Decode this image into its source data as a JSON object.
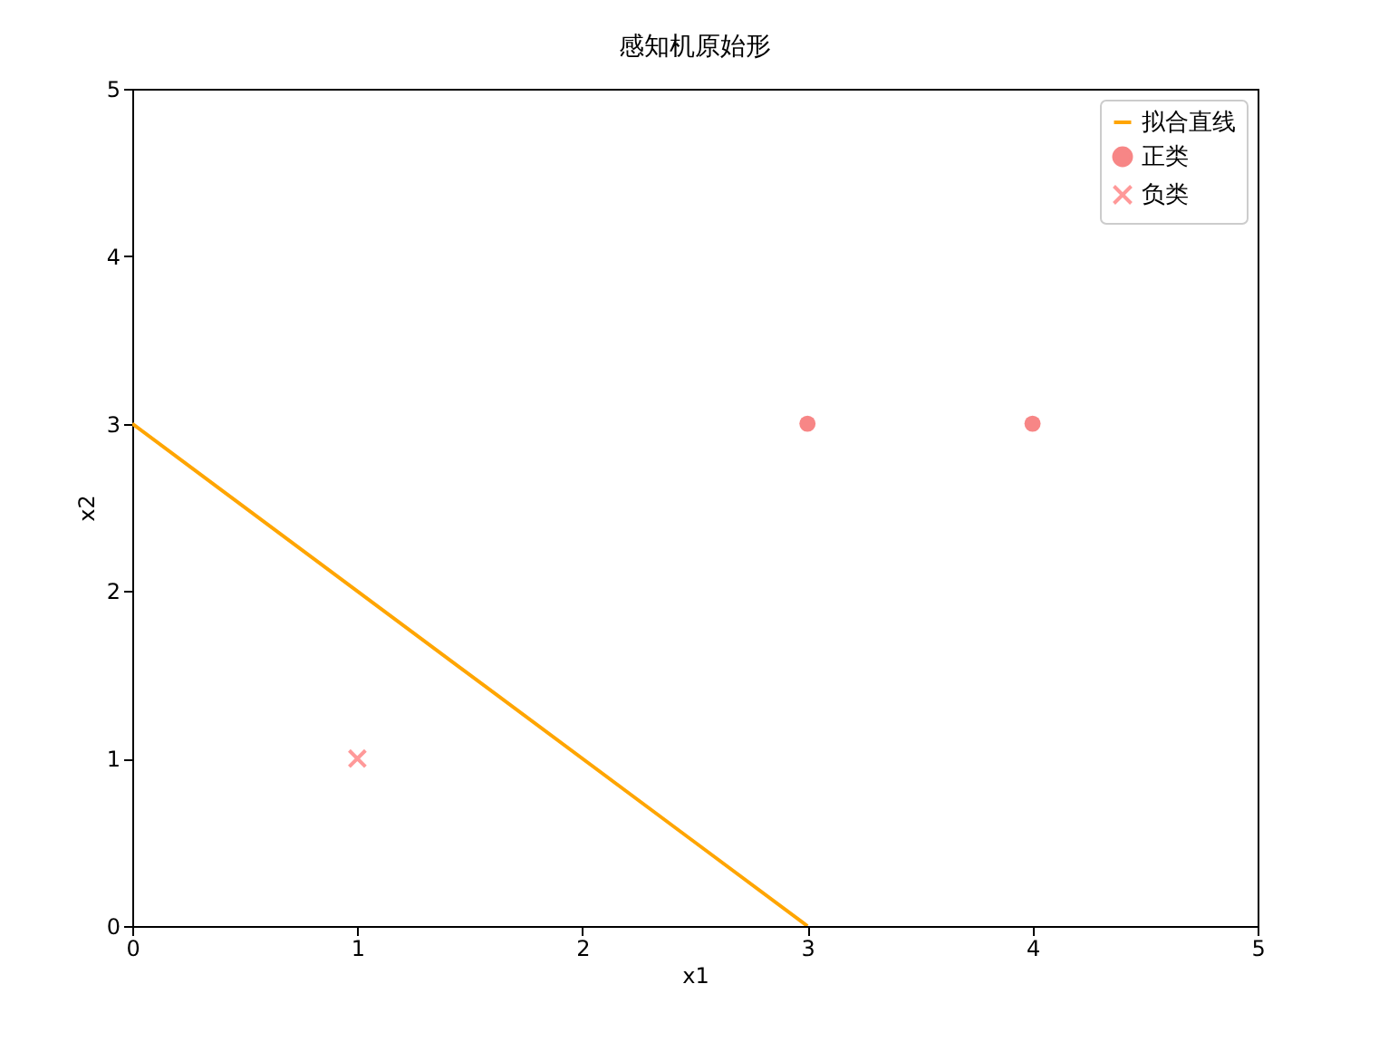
{
  "chart_data": {
    "type": "scatter",
    "title": "感知机原始形",
    "xlabel": "x1",
    "ylabel": "x2",
    "xlim": [
      0,
      5
    ],
    "ylim": [
      0,
      5
    ],
    "xticks": [
      0,
      1,
      2,
      3,
      4,
      5
    ],
    "yticks": [
      0,
      1,
      2,
      3,
      4,
      5
    ],
    "grid": false,
    "legend": "top right",
    "series": [
      {
        "name": "拟合直线",
        "type": "line",
        "color": "#ffa500",
        "marker": "none",
        "x": [
          0,
          3
        ],
        "values": [
          3,
          0
        ]
      },
      {
        "name": "正类",
        "color": "#f78686",
        "marker": "circle",
        "x": [
          3,
          4
        ],
        "values": [
          3,
          3
        ]
      },
      {
        "name": "负类",
        "color": "#ff9999",
        "marker": "cross",
        "x": [
          1
        ],
        "values": [
          1
        ]
      }
    ]
  }
}
